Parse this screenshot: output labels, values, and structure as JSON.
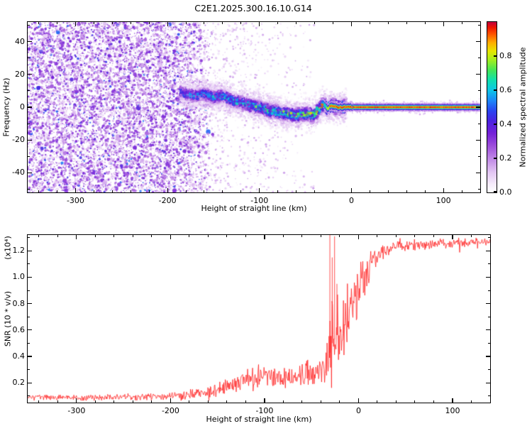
{
  "title": "C2E1.2025.300.16.10.G14",
  "chart_data": [
    {
      "type": "heatmap",
      "name": "spectrogram",
      "xlabel": "Height of straight line (km)",
      "ylabel": "Frequency (Hz)",
      "xlim": [
        -352,
        140
      ],
      "ylim": [
        -52,
        52
      ],
      "xticks": [
        -300,
        -200,
        -100,
        0,
        100
      ],
      "xtick_labels": [
        "-300",
        "-200",
        "-100",
        "0",
        "100"
      ],
      "x_minor": 20,
      "yticks": [
        -40,
        -20,
        0,
        20,
        40
      ],
      "ytick_labels": [
        "-40",
        "-20",
        "0",
        "20",
        "40"
      ],
      "y_minor": 10,
      "colorbar": {
        "label": "Normalized spectral amplitude",
        "range": [
          0,
          1
        ],
        "ticks": [
          0,
          0.2,
          0.4,
          0.6,
          0.8
        ],
        "tick_labels": [
          "0.0",
          "0.2",
          "0.4",
          "0.6",
          "0.8"
        ],
        "stops": [
          [
            0.0,
            "#ffffff"
          ],
          [
            0.05,
            "#f6ecfb"
          ],
          [
            0.12,
            "#e3c6f3"
          ],
          [
            0.2,
            "#c088e6"
          ],
          [
            0.28,
            "#9a4ada"
          ],
          [
            0.35,
            "#7420d8"
          ],
          [
            0.42,
            "#4b22e0"
          ],
          [
            0.48,
            "#2b44f0"
          ],
          [
            0.54,
            "#1d86f8"
          ],
          [
            0.6,
            "#0ec4e8"
          ],
          [
            0.66,
            "#0fe0b0"
          ],
          [
            0.72,
            "#45e655"
          ],
          [
            0.78,
            "#a4ee1e"
          ],
          [
            0.83,
            "#e6e600"
          ],
          [
            0.88,
            "#ffae00"
          ],
          [
            0.93,
            "#ff5500"
          ],
          [
            0.97,
            "#ee1500"
          ],
          [
            1.0,
            "#c4003c"
          ]
        ]
      },
      "noise_region": {
        "x_start": -352,
        "x_end": -180,
        "fade_to": -148,
        "description": "full-band purple speckle noise before signal acquisition"
      },
      "sparse_noise": {
        "x_start": -178,
        "x_end": -40
      },
      "signal_track": {
        "description": "residual Doppler frequency track of the occultation signal",
        "points": [
          [
            -186,
            9
          ],
          [
            -170,
            7
          ],
          [
            -160,
            8
          ],
          [
            -150,
            6
          ],
          [
            -140,
            7
          ],
          [
            -130,
            4
          ],
          [
            -120,
            3
          ],
          [
            -110,
            1
          ],
          [
            -100,
            0
          ],
          [
            -90,
            -2
          ],
          [
            -80,
            -3
          ],
          [
            -70,
            -4
          ],
          [
            -60,
            -5
          ],
          [
            -50,
            -4
          ],
          [
            -42,
            -5
          ],
          [
            -35,
            -1
          ],
          [
            -30,
            2
          ],
          [
            -26,
            -1
          ],
          [
            -22,
            1
          ],
          [
            -15,
            0
          ],
          [
            -10,
            0
          ],
          [
            0,
            0
          ],
          [
            140,
            0
          ]
        ],
        "intensity": [
          [
            -186,
            0.45
          ],
          [
            -150,
            0.5
          ],
          [
            -120,
            0.56
          ],
          [
            -90,
            0.6
          ],
          [
            -60,
            0.66
          ],
          [
            -40,
            0.72
          ],
          [
            -25,
            0.8
          ],
          [
            -8,
            0.88
          ],
          [
            140,
            1
          ]
        ]
      },
      "carrier": {
        "x_start": -30,
        "bands": [
          [
            2.6,
            0.17
          ],
          [
            1.8,
            0.4
          ],
          [
            1.15,
            0.62
          ],
          [
            0.7,
            0.8
          ],
          [
            0.42,
            0.93
          ]
        ]
      }
    },
    {
      "type": "line",
      "name": "snr-profile",
      "xlabel": "Height of straight line (km)",
      "ylabel": "SNR (10 * v/v)",
      "y_scale_note": "(x10⁴)",
      "xlim": [
        -352,
        140
      ],
      "ylim": [
        0.05,
        1.32
      ],
      "xticks": [
        -300,
        -200,
        -100,
        0,
        100
      ],
      "xtick_labels": [
        "-300",
        "-200",
        "-100",
        "0",
        "100"
      ],
      "x_minor": 20,
      "yticks": [
        0.2,
        0.4,
        0.6,
        0.8,
        1.0,
        1.2
      ],
      "ytick_labels": [
        "0.2",
        "0.4",
        "0.6",
        "0.8",
        "1.0",
        "1.2"
      ],
      "y_minor": 0.1,
      "series": [
        {
          "name": "SNR",
          "color": "#ff2222",
          "envelope": [
            {
              "x": -352,
              "mean": 0.09,
              "noise": 0.025
            },
            {
              "x": -250,
              "mean": 0.09,
              "noise": 0.03
            },
            {
              "x": -190,
              "mean": 0.1,
              "noise": 0.035
            },
            {
              "x": -160,
              "mean": 0.13,
              "noise": 0.05
            },
            {
              "x": -140,
              "mean": 0.18,
              "noise": 0.08
            },
            {
              "x": -120,
              "mean": 0.22,
              "noise": 0.1
            },
            {
              "x": -100,
              "mean": 0.25,
              "noise": 0.11
            },
            {
              "x": -80,
              "mean": 0.24,
              "noise": 0.1
            },
            {
              "x": -60,
              "mean": 0.26,
              "noise": 0.11
            },
            {
              "x": -45,
              "mean": 0.28,
              "noise": 0.12
            },
            {
              "x": -35,
              "mean": 0.3,
              "noise": 0.15
            },
            {
              "x": -28,
              "mean": 0.5,
              "noise": 0.45
            },
            {
              "x": -20,
              "mean": 0.6,
              "noise": 0.35
            },
            {
              "x": -12,
              "mean": 0.7,
              "noise": 0.3
            },
            {
              "x": -4,
              "mean": 0.8,
              "noise": 0.28
            },
            {
              "x": 2,
              "mean": 0.95,
              "noise": 0.22
            },
            {
              "x": 8,
              "mean": 1.02,
              "noise": 0.18
            },
            {
              "x": 15,
              "mean": 1.12,
              "noise": 0.12
            },
            {
              "x": 25,
              "mean": 1.2,
              "noise": 0.07
            },
            {
              "x": 40,
              "mean": 1.24,
              "noise": 0.05
            },
            {
              "x": 140,
              "mean": 1.27,
              "noise": 0.04
            }
          ],
          "spikes": [
            {
              "x": -30.5,
              "y": 1.33
            },
            {
              "x": -28,
              "y": 1.15
            },
            {
              "x": -25.5,
              "y": 1.31
            },
            {
              "x": -23,
              "y": 0.95
            }
          ]
        }
      ]
    }
  ]
}
